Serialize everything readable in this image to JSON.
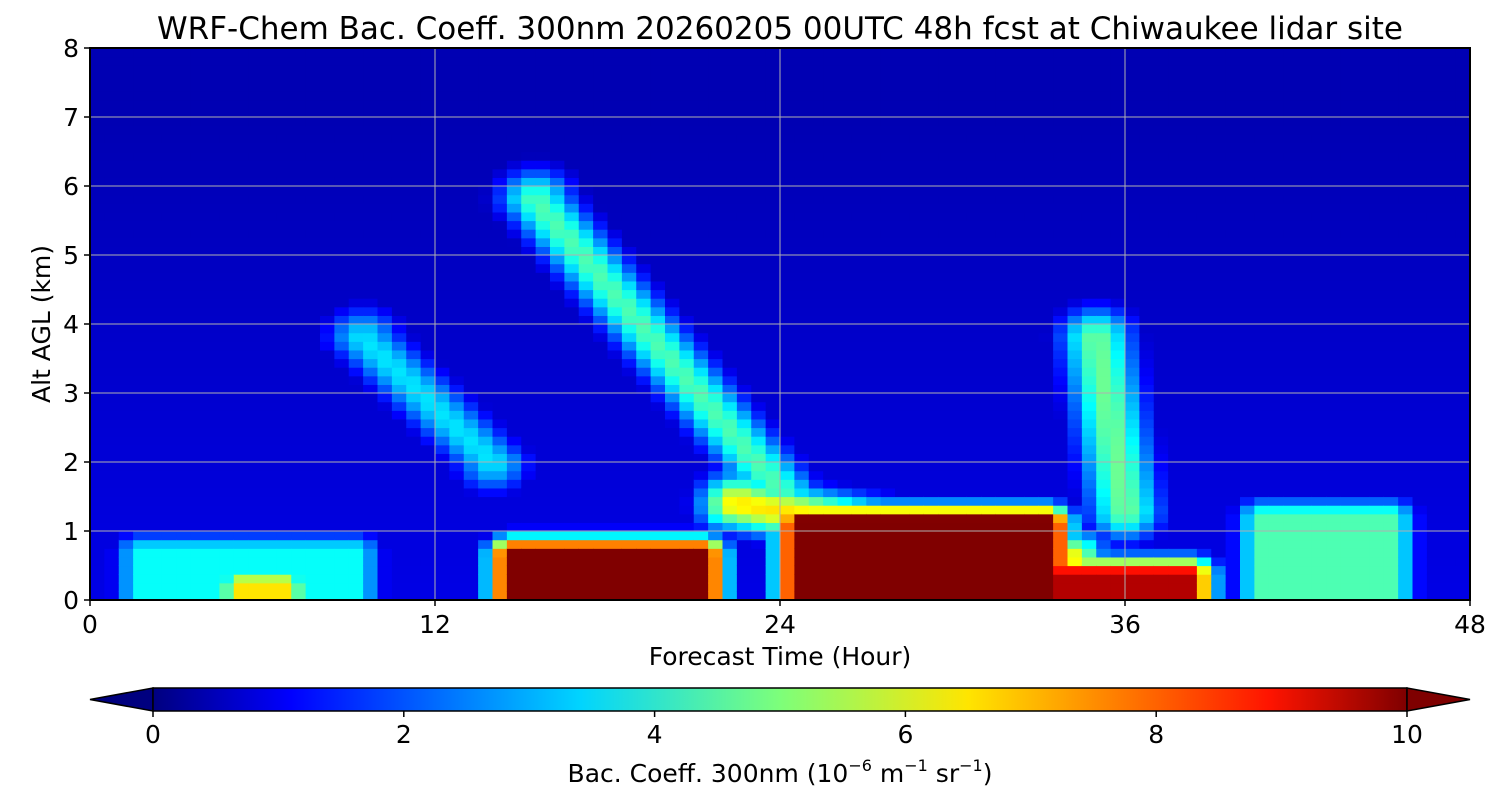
{
  "chart_data": {
    "type": "heatmap",
    "title": "WRF-Chem Bac. Coeff. 300nm  20260205 00UTC 48h fcst at Chiwaukee lidar site",
    "xlabel": "Forecast Time (Hour)",
    "ylabel": "Alt AGL (km)",
    "xlim": [
      0,
      48
    ],
    "ylim": [
      0,
      8
    ],
    "x_ticks": [
      "0",
      "12",
      "24",
      "36",
      "48"
    ],
    "y_ticks": [
      "0",
      "1",
      "2",
      "3",
      "4",
      "5",
      "6",
      "7",
      "8"
    ],
    "grid": true,
    "colormap": "jet",
    "colorbar": {
      "orientation": "horizontal",
      "extend": "both",
      "range": [
        0,
        10
      ],
      "ticks": [
        "0",
        "2",
        "4",
        "6",
        "8",
        "10"
      ],
      "label_main": "Bac. Coeff. 300nm  (10",
      "label_exp1": "−6",
      "label_unit1": " m",
      "label_exp2": "−1",
      "label_unit2": " sr",
      "label_exp3": "−1",
      "label_end": ")"
    },
    "field_features": {
      "background": 1.0,
      "upper_clean": 0.5,
      "surface_layer": [
        {
          "x0": 1,
          "x1": 10,
          "base": 3.8,
          "top_km": 0.7
        },
        {
          "x0": 4.5,
          "x1": 7.5,
          "base": 6.5,
          "top_km": 0.2
        },
        {
          "x0": 14,
          "x1": 22,
          "base": 10.5,
          "top_km": 0.65
        },
        {
          "x0": 24,
          "x1": 34,
          "base": 11,
          "top_km": 1.1
        },
        {
          "x0": 33,
          "x1": 39,
          "base": 9.5,
          "top_km": 0.35
        },
        {
          "x0": 40,
          "x1": 46,
          "base": 4.5,
          "top_km": 1.2
        }
      ],
      "plumes": [
        {
          "x": [
            15.5,
            24
          ],
          "y": [
            5.8,
            1.6
          ],
          "peak": 4.5
        },
        {
          "x": [
            9.5,
            14
          ],
          "y": [
            3.8,
            2.0
          ],
          "peak": 3.5
        },
        {
          "x": [
            35,
            36
          ],
          "y": [
            3.8,
            1.3
          ],
          "peak": 4.8
        },
        {
          "x": [
            22.5,
            34
          ],
          "y": [
            1.4,
            0.6
          ],
          "peak": 6.5
        }
      ]
    }
  }
}
